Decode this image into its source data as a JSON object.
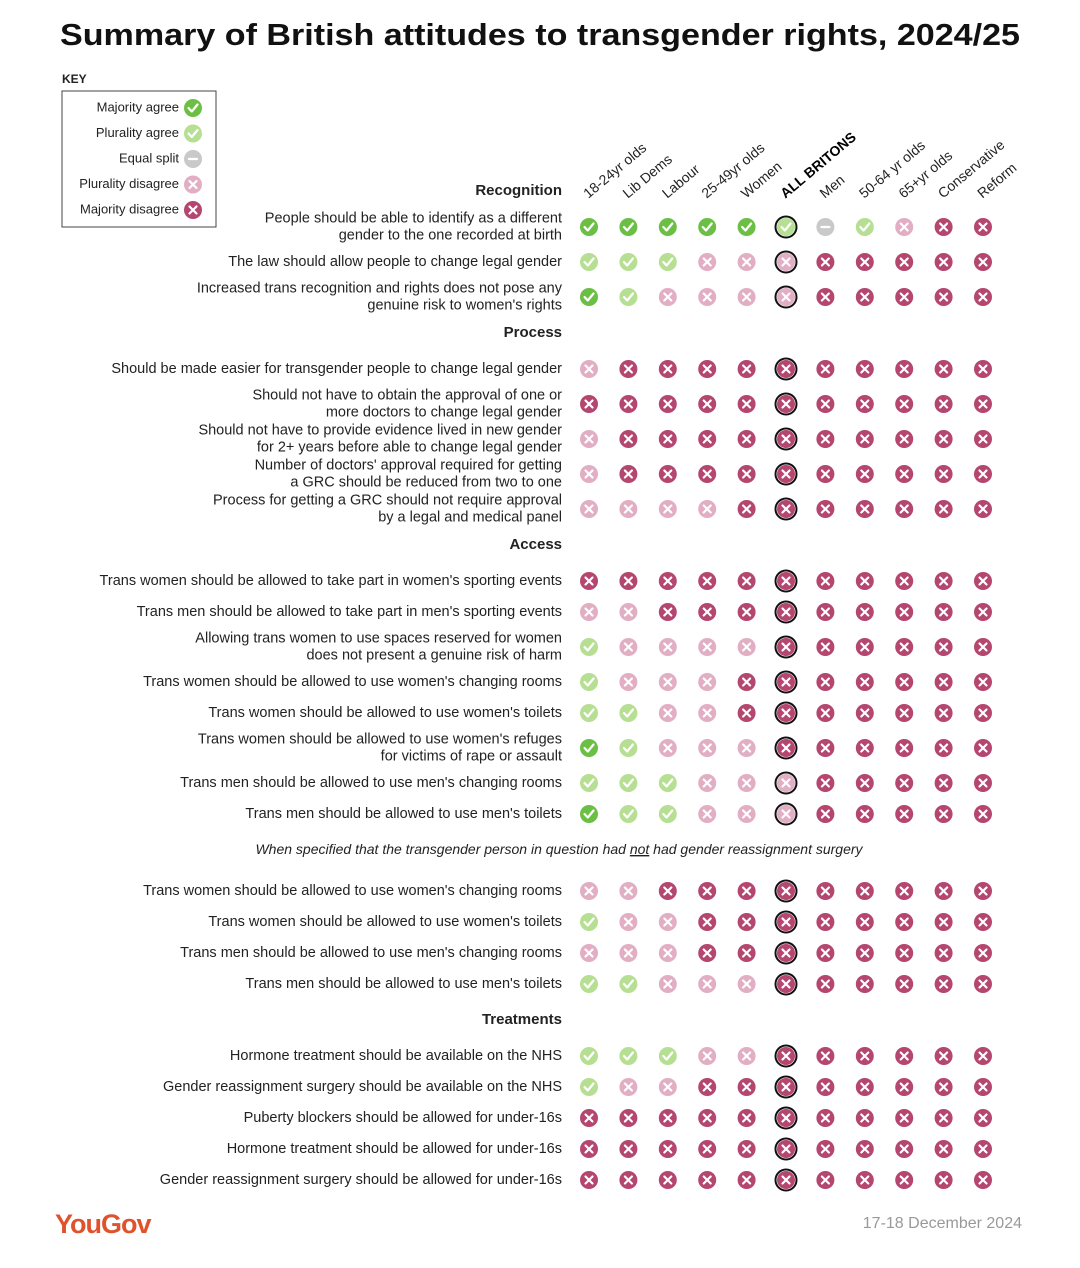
{
  "title": "Summary of British attitudes to transgender rights, 2024/25",
  "key": {
    "title": "KEY",
    "items": [
      {
        "label": "Majority agree",
        "color": "#6cbf45",
        "icon": "check"
      },
      {
        "label": "Plurality agree",
        "color": "#b7df93",
        "icon": "check"
      },
      {
        "label": "Equal split",
        "color": "#c9c9c9",
        "icon": "dash"
      },
      {
        "label": "Plurality disagree",
        "color": "#e2aec4",
        "icon": "cross"
      },
      {
        "label": "Majority disagree",
        "color": "#b4466f",
        "icon": "cross"
      }
    ]
  },
  "columns": [
    "18-24yr olds",
    "Lib Dems",
    "Labour",
    "25-49yr olds",
    "Women",
    "ALL BRITONS",
    "Men",
    "50-64 yr olds",
    "65+yr olds",
    "Conservative",
    "Reform"
  ],
  "highlight_column": 5,
  "sections": [
    {
      "heading": "Recognition",
      "rows": [
        {
          "label": [
            "People should be able to identify as a different",
            "gender to the one recorded at birth"
          ],
          "values": [
            0,
            0,
            0,
            0,
            0,
            1,
            2,
            1,
            3,
            4,
            4
          ]
        },
        {
          "label": [
            "The law should allow people to change legal gender"
          ],
          "values": [
            1,
            1,
            1,
            3,
            3,
            3,
            4,
            4,
            4,
            4,
            4
          ]
        },
        {
          "label": [
            "Increased trans recognition and rights does not pose any",
            "genuine risk to women's rights"
          ],
          "values": [
            0,
            1,
            3,
            3,
            3,
            3,
            4,
            4,
            4,
            4,
            4
          ]
        }
      ]
    },
    {
      "heading": "Process",
      "rows": [
        {
          "label": [
            "Should be made easier for transgender people to change legal gender"
          ],
          "values": [
            3,
            4,
            4,
            4,
            4,
            4,
            4,
            4,
            4,
            4,
            4
          ]
        },
        {
          "label": [
            "Should not have to obtain the approval of one or",
            "more doctors to change legal gender"
          ],
          "values": [
            4,
            4,
            4,
            4,
            4,
            4,
            4,
            4,
            4,
            4,
            4
          ]
        },
        {
          "label": [
            "Should not have to provide evidence lived in new gender",
            "for 2+ years before able to change legal gender"
          ],
          "values": [
            3,
            4,
            4,
            4,
            4,
            4,
            4,
            4,
            4,
            4,
            4
          ]
        },
        {
          "label": [
            "Number of doctors' approval required for getting",
            "a GRC should be reduced from two to one"
          ],
          "values": [
            3,
            4,
            4,
            4,
            4,
            4,
            4,
            4,
            4,
            4,
            4
          ]
        },
        {
          "label": [
            "Process for getting a GRC should not require approval",
            "by a legal and medical panel"
          ],
          "values": [
            3,
            3,
            3,
            3,
            4,
            4,
            4,
            4,
            4,
            4,
            4
          ]
        }
      ]
    },
    {
      "heading": "Access",
      "rows": [
        {
          "label": [
            "Trans women should be allowed to take part in women's sporting events"
          ],
          "values": [
            4,
            4,
            4,
            4,
            4,
            4,
            4,
            4,
            4,
            4,
            4
          ]
        },
        {
          "label": [
            "Trans men should be allowed to take part in men's sporting events"
          ],
          "values": [
            3,
            3,
            4,
            4,
            4,
            4,
            4,
            4,
            4,
            4,
            4
          ]
        },
        {
          "label": [
            "Allowing trans women to use spaces reserved for women",
            "does not present a genuine risk of harm"
          ],
          "values": [
            1,
            3,
            3,
            3,
            3,
            4,
            4,
            4,
            4,
            4,
            4
          ]
        },
        {
          "label": [
            "Trans women should be allowed to use women's changing rooms"
          ],
          "values": [
            1,
            3,
            3,
            3,
            4,
            4,
            4,
            4,
            4,
            4,
            4
          ]
        },
        {
          "label": [
            "Trans women should be allowed to use women's toilets"
          ],
          "values": [
            1,
            1,
            3,
            3,
            4,
            4,
            4,
            4,
            4,
            4,
            4
          ]
        },
        {
          "label": [
            "Trans women should be allowed to use women's refuges",
            "for victims of rape or assault"
          ],
          "values": [
            0,
            1,
            3,
            3,
            3,
            4,
            4,
            4,
            4,
            4,
            4
          ]
        },
        {
          "label": [
            "Trans men should be allowed to use men's changing rooms"
          ],
          "values": [
            1,
            1,
            1,
            3,
            3,
            3,
            4,
            4,
            4,
            4,
            4
          ]
        },
        {
          "label": [
            "Trans men should be allowed to use men's toilets"
          ],
          "values": [
            0,
            1,
            1,
            3,
            3,
            3,
            4,
            4,
            4,
            4,
            4
          ]
        }
      ]
    },
    {
      "note": [
        "When specified that the transgender person in question had ",
        "not",
        " had gender reassignment surgery"
      ],
      "rows": [
        {
          "label": [
            "Trans women should be allowed to use women's changing rooms"
          ],
          "values": [
            3,
            3,
            4,
            4,
            4,
            4,
            4,
            4,
            4,
            4,
            4
          ]
        },
        {
          "label": [
            "Trans women should be allowed to use women's toilets"
          ],
          "values": [
            1,
            3,
            3,
            4,
            4,
            4,
            4,
            4,
            4,
            4,
            4
          ]
        },
        {
          "label": [
            "Trans men should be allowed to use men's changing rooms"
          ],
          "values": [
            3,
            3,
            3,
            4,
            4,
            4,
            4,
            4,
            4,
            4,
            4
          ]
        },
        {
          "label": [
            "Trans men should be allowed to use men's toilets"
          ],
          "values": [
            1,
            1,
            3,
            3,
            3,
            4,
            4,
            4,
            4,
            4,
            4
          ]
        }
      ]
    },
    {
      "heading": "Treatments",
      "rows": [
        {
          "label": [
            "Hormone treatment should be available on the NHS"
          ],
          "values": [
            1,
            1,
            1,
            3,
            3,
            4,
            4,
            4,
            4,
            4,
            4
          ]
        },
        {
          "label": [
            "Gender reassignment surgery should be available on the NHS"
          ],
          "values": [
            1,
            3,
            3,
            4,
            4,
            4,
            4,
            4,
            4,
            4,
            4
          ]
        },
        {
          "label": [
            "Puberty blockers should be allowed for under-16s"
          ],
          "values": [
            4,
            4,
            4,
            4,
            4,
            4,
            4,
            4,
            4,
            4,
            4
          ]
        },
        {
          "label": [
            "Hormone treatment should be allowed for under-16s"
          ],
          "values": [
            4,
            4,
            4,
            4,
            4,
            4,
            4,
            4,
            4,
            4,
            4
          ]
        },
        {
          "label": [
            "Gender reassignment surgery should be allowed for under-16s"
          ],
          "values": [
            4,
            4,
            4,
            4,
            4,
            4,
            4,
            4,
            4,
            4,
            4
          ]
        }
      ]
    }
  ],
  "footer": {
    "brand": "YouGov",
    "date": "17-18 December 2024"
  }
}
